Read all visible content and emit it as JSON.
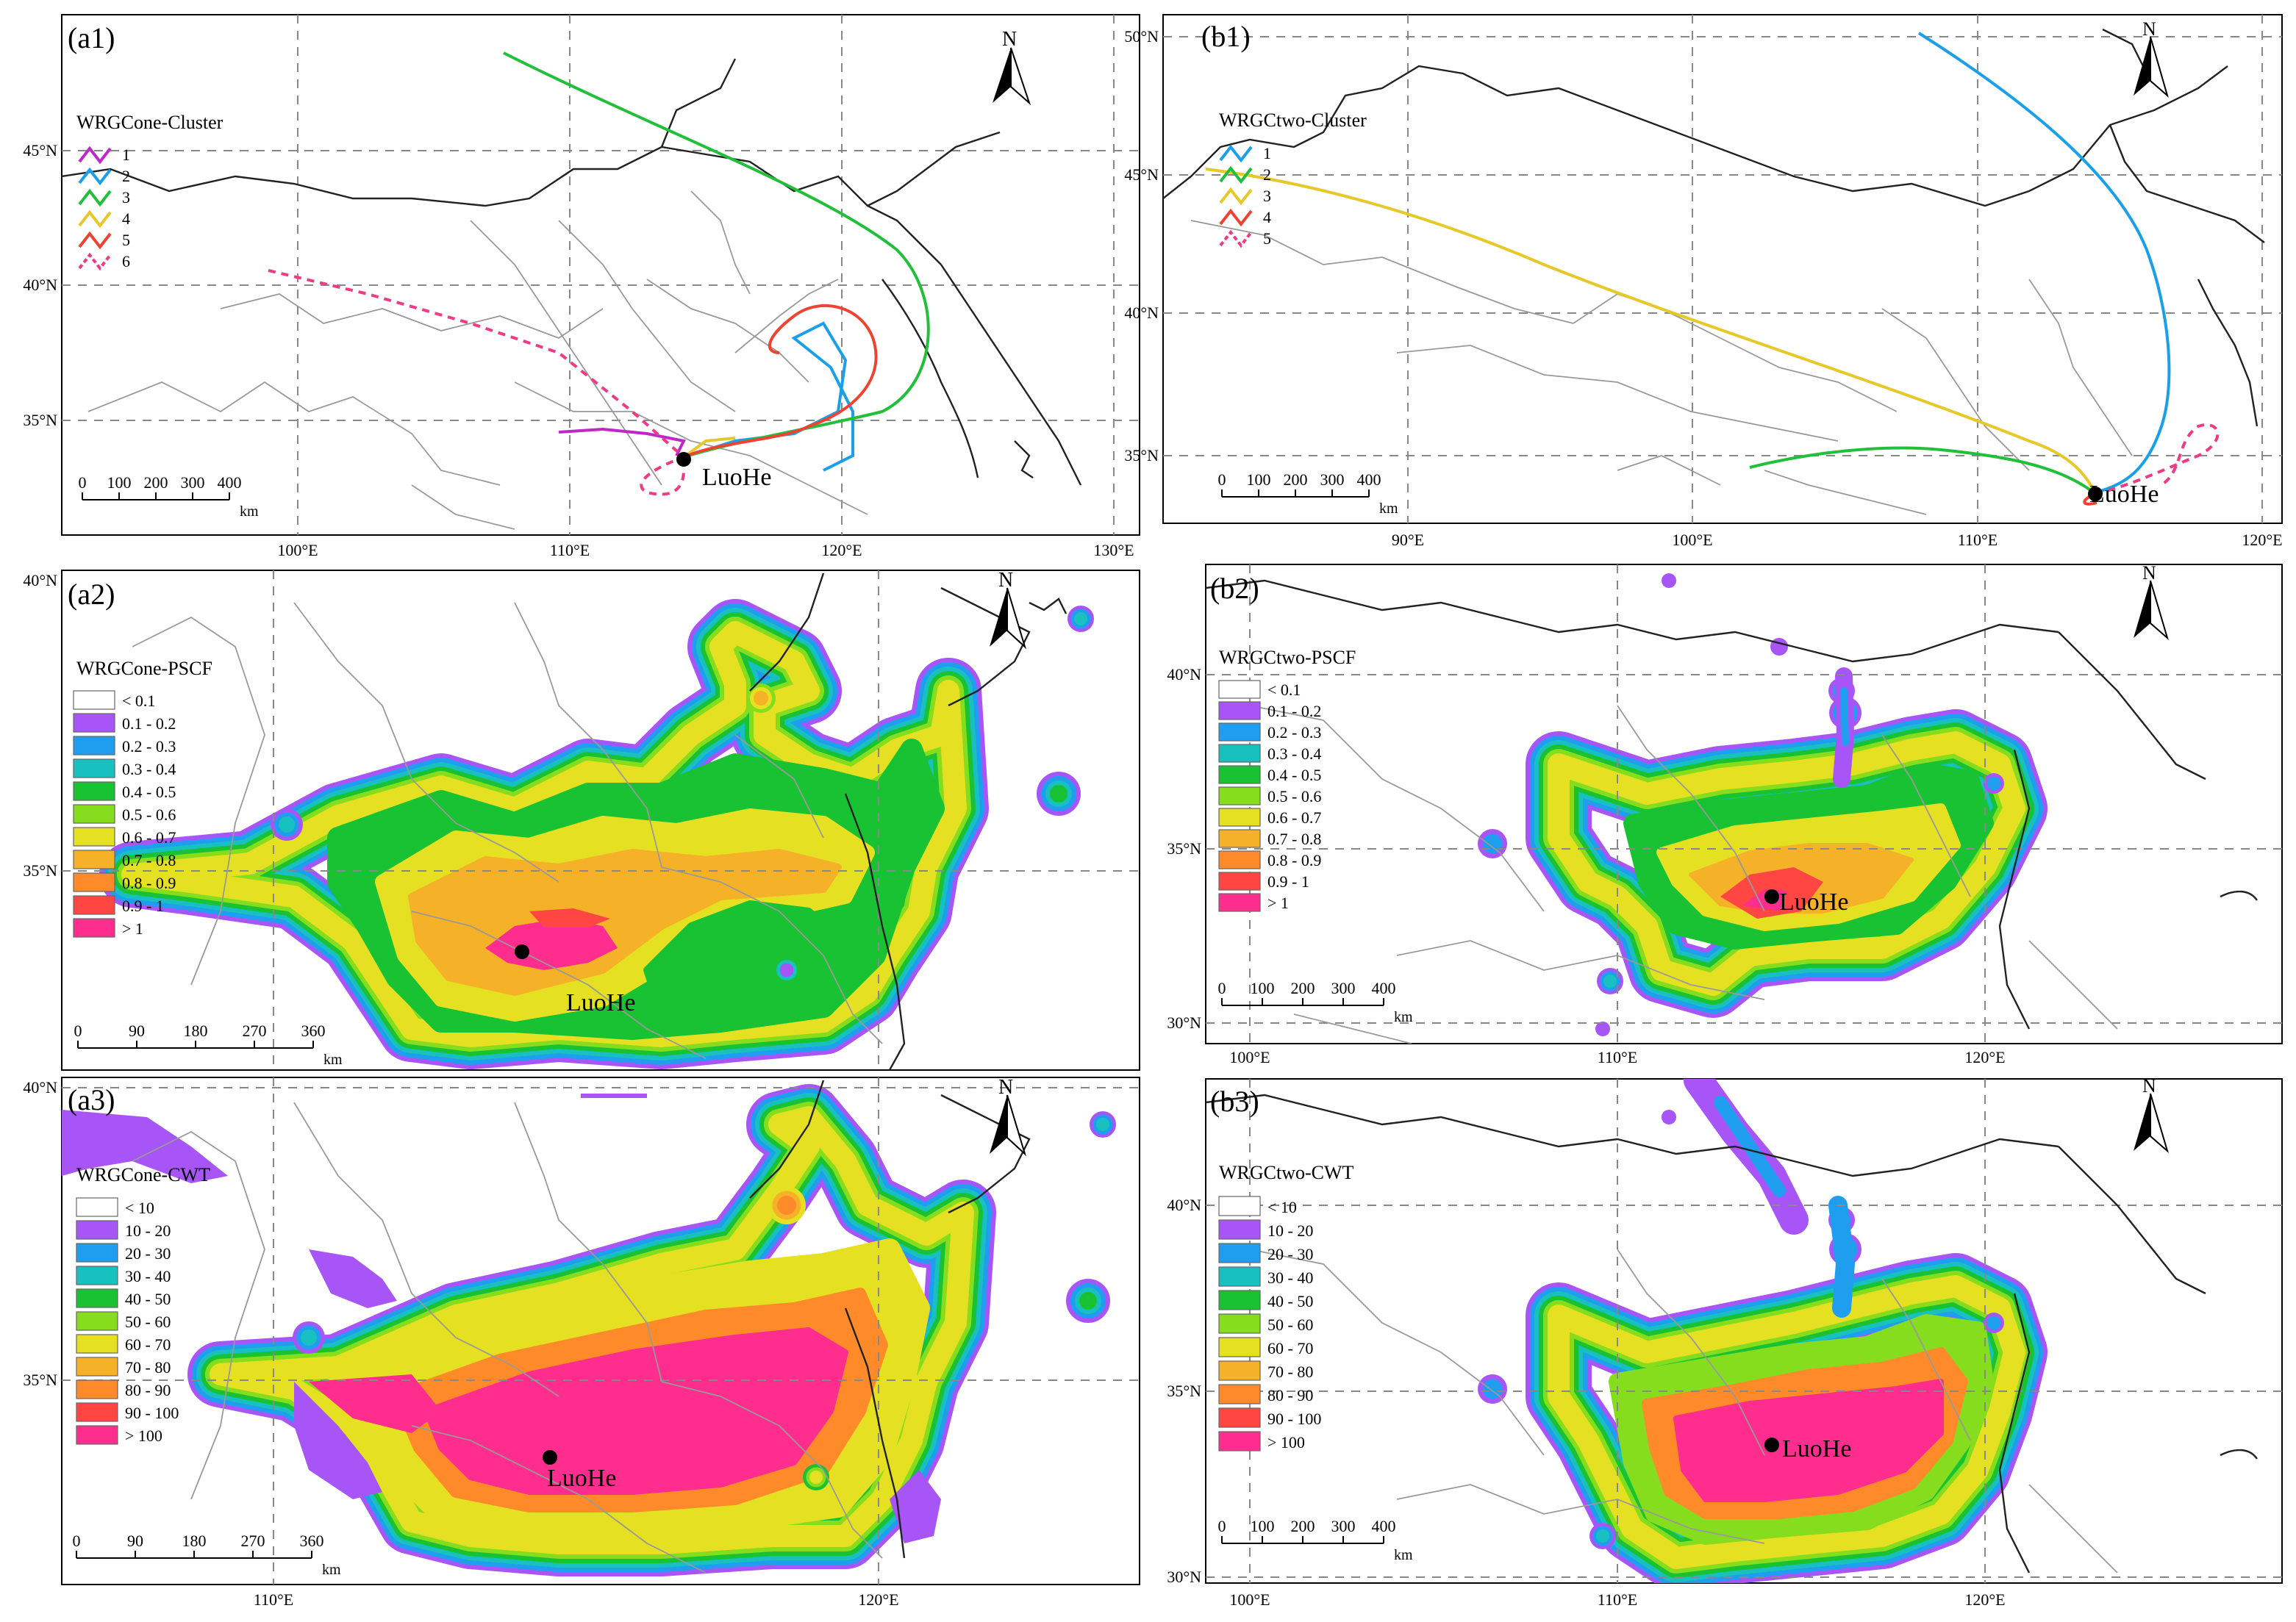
{
  "colors": {
    "cluster": [
      "#c027c8",
      "#1aa0e8",
      "#22c03a",
      "#e6c829",
      "#ef4332",
      "#ef3a86"
    ],
    "cluster_b": [
      "#1aa0e8",
      "#22c03a",
      "#e6c829",
      "#ef4332",
      "#ef3a86"
    ],
    "levels": [
      "#ffffff",
      "#a855f7",
      "#1f9ef0",
      "#19c0c0",
      "#19c232",
      "#86dd1e",
      "#e6e022",
      "#f5b228",
      "#ff8a2a",
      "#ff4642",
      "#ff2d8e"
    ]
  },
  "city_label": "LuoHe",
  "north_label": "N",
  "km_label": "km",
  "panels": [
    {
      "id": "a1",
      "label": "(a1)",
      "legend_title": "WRGCone-Cluster",
      "legend_items": [
        "1",
        "2",
        "3",
        "4",
        "5",
        "6"
      ],
      "x_ticks": [
        "100°E",
        "110°E",
        "120°E",
        "130°E"
      ],
      "y_ticks": [
        "45°N",
        "40°N",
        "35°N"
      ],
      "scale_labels": [
        "0",
        "100",
        "200",
        "300",
        "400"
      ]
    },
    {
      "id": "b1",
      "label": "(b1)",
      "legend_title": "WRGCtwo-Cluster",
      "legend_items": [
        "1",
        "2",
        "3",
        "4",
        "5"
      ],
      "x_ticks": [
        "90°E",
        "100°E",
        "110°E",
        "120°E"
      ],
      "y_ticks": [
        "50°N",
        "45°N",
        "40°N",
        "35°N"
      ],
      "scale_labels": [
        "0",
        "100",
        "200",
        "300",
        "400"
      ]
    },
    {
      "id": "a2",
      "label": "(a2)",
      "legend_title": "WRGCone-PSCF",
      "legend_items": [
        "< 0.1",
        "0.1 - 0.2",
        "0.2 - 0.3",
        "0.3 - 0.4",
        "0.4 - 0.5",
        "0.5 - 0.6",
        "0.6 - 0.7",
        "0.7 - 0.8",
        "0.8 - 0.9",
        "0.9 - 1",
        "> 1"
      ],
      "y_ticks": [
        "40°N",
        "35°N"
      ],
      "scale_labels": [
        "0",
        "90",
        "180",
        "270",
        "360"
      ]
    },
    {
      "id": "b2",
      "label": "(b2)",
      "legend_title": "WRGCtwo-PSCF",
      "legend_items": [
        "< 0.1",
        "0.1 - 0.2",
        "0.2 - 0.3",
        "0.3 - 0.4",
        "0.4 - 0.5",
        "0.5 - 0.6",
        "0.6 - 0.7",
        "0.7 - 0.8",
        "0.8 - 0.9",
        "0.9 - 1",
        "> 1"
      ],
      "x_ticks": [
        "100°E",
        "110°E",
        "120°E"
      ],
      "y_ticks": [
        "40°N",
        "35°N",
        "30°N"
      ],
      "scale_labels": [
        "0",
        "100",
        "200",
        "300",
        "400"
      ]
    },
    {
      "id": "a3",
      "label": "(a3)",
      "legend_title": "WRGCone-CWT",
      "legend_items": [
        "< 10",
        "10 - 20",
        "20 - 30",
        "30 - 40",
        "40 - 50",
        "50 - 60",
        "60 - 70",
        "70 - 80",
        "80 - 90",
        "90 - 100",
        "> 100"
      ],
      "x_ticks": [
        "110°E",
        "120°E"
      ],
      "y_ticks": [
        "40°N",
        "35°N"
      ],
      "scale_labels": [
        "0",
        "90",
        "180",
        "270",
        "360"
      ]
    },
    {
      "id": "b3",
      "label": "(b3)",
      "legend_title": "WRGCtwo-CWT",
      "legend_items": [
        "< 10",
        "10 - 20",
        "20 - 30",
        "30 - 40",
        "40 - 50",
        "50 - 60",
        "60 - 70",
        "70 - 80",
        "80 - 90",
        "90 - 100",
        "> 100"
      ],
      "x_ticks": [
        "100°E",
        "110°E",
        "120°E"
      ],
      "y_ticks": [
        "40°N",
        "35°N",
        "30°N"
      ],
      "scale_labels": [
        "0",
        "100",
        "200",
        "300",
        "400"
      ]
    }
  ]
}
